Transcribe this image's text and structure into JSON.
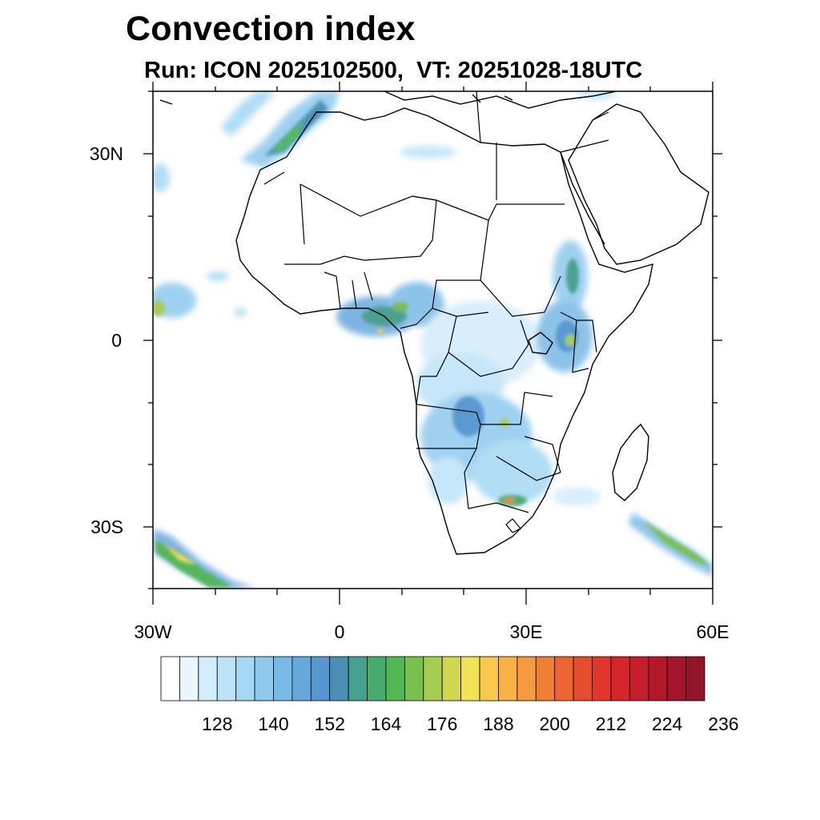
{
  "title": "Convection index",
  "subtitle": "Run: ICON 2025102500,  VT: 20251028-18UTC",
  "axes": {
    "lat_labels": [
      "30N",
      "0",
      "30S"
    ],
    "lon_labels": [
      "30W",
      "0",
      "30E",
      "60E"
    ]
  },
  "colorbar": {
    "tick_labels": [
      "128",
      "140",
      "152",
      "164",
      "176",
      "188",
      "200",
      "212",
      "224",
      "236"
    ],
    "colors": [
      "#ffffff",
      "#e9f6fd",
      "#d2ecfa",
      "#bce3f8",
      "#a4d8f4",
      "#8ec9ee",
      "#79b9e6",
      "#67a8dc",
      "#5697d0",
      "#4a8fb5",
      "#46a08e",
      "#47ab6e",
      "#53b752",
      "#7ac04f",
      "#a8cc4f",
      "#d2d750",
      "#f2e257",
      "#f8c94d",
      "#f7b147",
      "#f59a3f",
      "#f27f36",
      "#ee6430",
      "#e64d2d",
      "#df372c",
      "#d5252b",
      "#c51c2b",
      "#b4162a",
      "#a3152a",
      "#921427"
    ]
  },
  "colors": {
    "blue_light": "#a4d8f4",
    "blue_mid": "#67a8dc",
    "green": "#53b752",
    "yellow": "#f2e257",
    "orange": "#f27f36",
    "red": "#d5252b"
  }
}
